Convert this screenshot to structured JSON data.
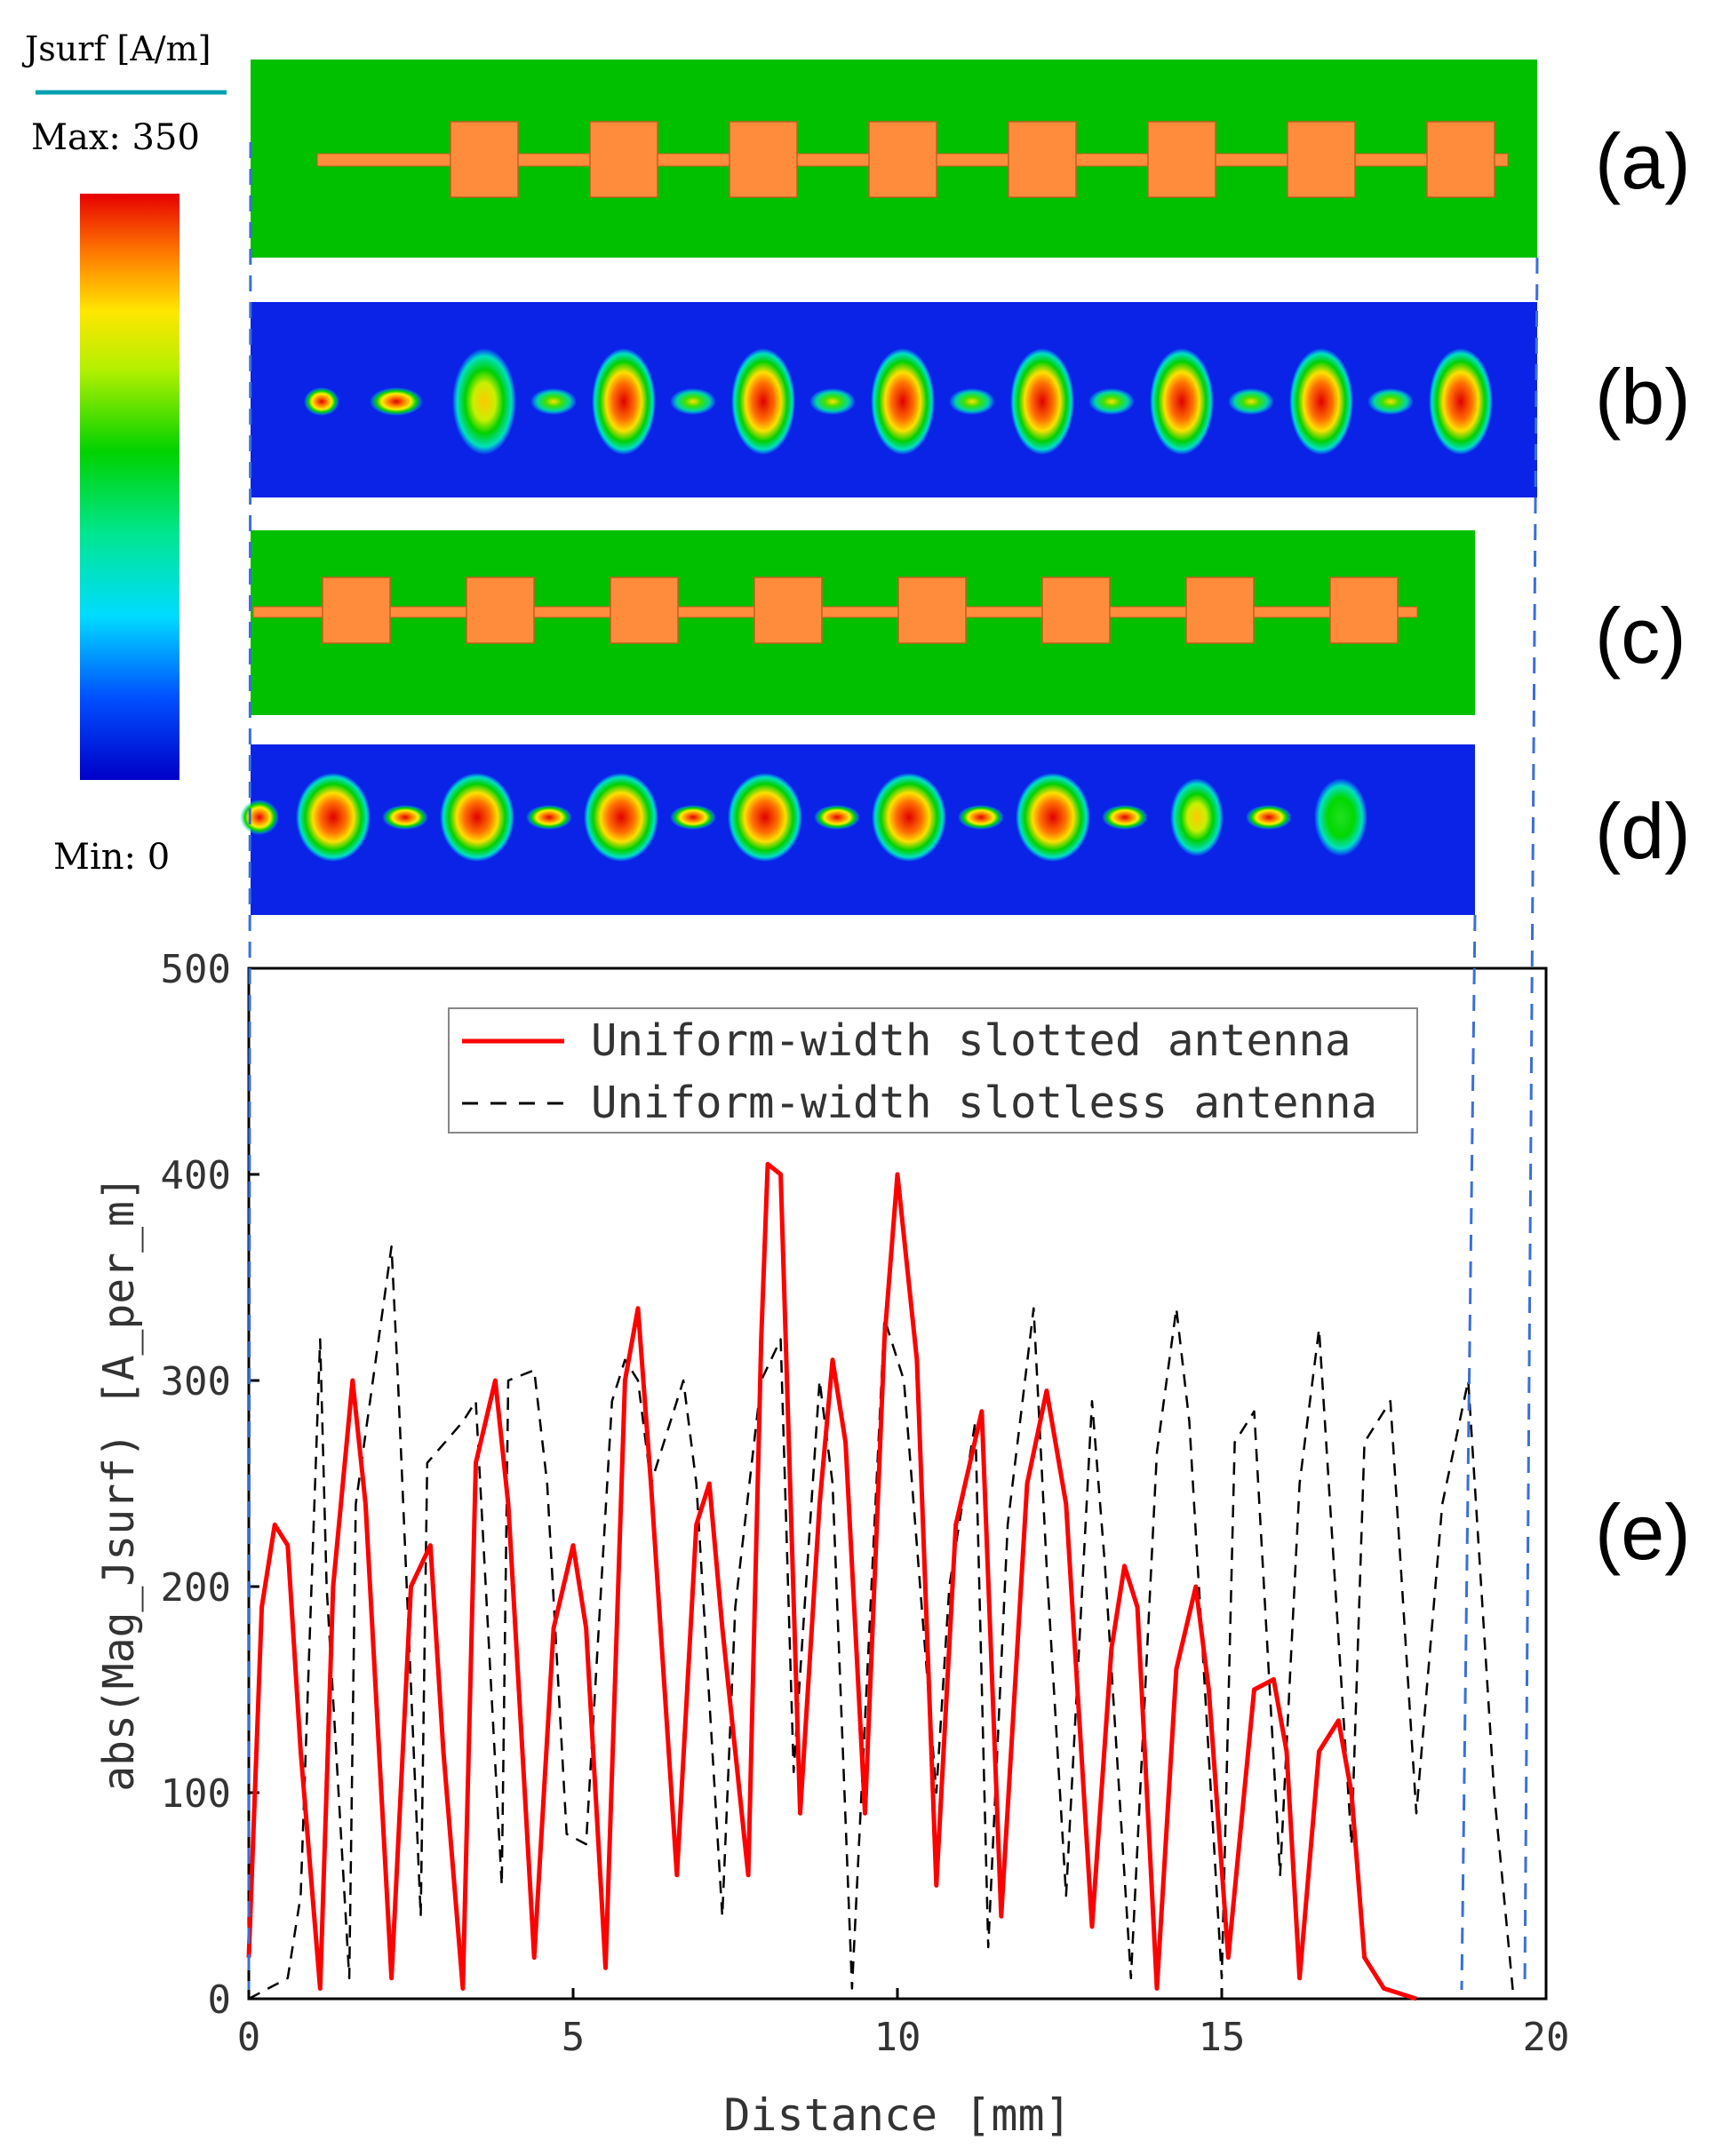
{
  "colorbar": {
    "title": "Jsurf [A/m]",
    "max_label": "Max:  350",
    "min_label": "Min:  0",
    "max": 350,
    "min": 0
  },
  "panels": {
    "a": {
      "label": "(a)",
      "pads": 8
    },
    "b": {
      "label": "(b)"
    },
    "c": {
      "label": "(c)",
      "pads": 8
    },
    "d": {
      "label": "(d)"
    },
    "e": {
      "label": "(e)"
    }
  },
  "colors": {
    "substrate": "#00C000",
    "copper": "#FF8C3C",
    "field_bg": "#0A23E6",
    "slotted": "#FF0000",
    "slotless": "#000000",
    "guide": "#3A6FD8"
  },
  "chart_data": {
    "type": "line",
    "xlabel": "Distance [mm]",
    "ylabel": "abs(Mag_Jsurf) [A_per_m]",
    "xlim": [
      0,
      20
    ],
    "ylim": [
      0,
      500
    ],
    "xticks": [
      0,
      5,
      10,
      15,
      20
    ],
    "yticks": [
      0,
      100,
      200,
      300,
      400,
      500
    ],
    "legend": "top-right",
    "series": [
      {
        "name": "Uniform-width slotted antenna",
        "style": "solid",
        "x": [
          0,
          0.2,
          0.4,
          0.6,
          0.8,
          1.1,
          1.3,
          1.6,
          1.8,
          2.2,
          2.5,
          2.8,
          3.0,
          3.3,
          3.5,
          3.8,
          4.0,
          4.4,
          4.7,
          5.0,
          5.2,
          5.5,
          5.8,
          6.0,
          6.2,
          6.6,
          6.9,
          7.1,
          7.3,
          7.7,
          7.9,
          8.0,
          8.2,
          8.5,
          8.8,
          9.0,
          9.2,
          9.5,
          9.8,
          10.0,
          10.3,
          10.6,
          10.9,
          11.3,
          11.6,
          12.0,
          12.3,
          12.6,
          13.0,
          13.3,
          13.5,
          13.7,
          14.0,
          14.3,
          14.6,
          14.8,
          15.1,
          15.5,
          15.8,
          16.0,
          16.2,
          16.5,
          16.8,
          17.0,
          17.2,
          17.5,
          18.0
        ],
        "y": [
          20,
          190,
          230,
          220,
          120,
          5,
          200,
          300,
          240,
          10,
          200,
          220,
          120,
          5,
          260,
          300,
          240,
          20,
          180,
          220,
          180,
          15,
          300,
          335,
          250,
          60,
          230,
          250,
          180,
          60,
          320,
          405,
          400,
          90,
          240,
          310,
          270,
          90,
          320,
          400,
          310,
          55,
          230,
          285,
          40,
          250,
          295,
          240,
          35,
          170,
          210,
          190,
          5,
          160,
          200,
          150,
          20,
          150,
          155,
          120,
          10,
          120,
          135,
          100,
          20,
          5,
          0
        ]
      },
      {
        "name": "Uniform-width slotless antenna",
        "style": "dashed",
        "x": [
          0,
          0.6,
          0.8,
          1.1,
          1.2,
          1.55,
          1.65,
          2.2,
          2.3,
          2.65,
          2.75,
          3.3,
          3.5,
          3.9,
          4.0,
          4.4,
          4.6,
          4.9,
          5.2,
          5.6,
          5.8,
          6.0,
          6.2,
          6.7,
          6.9,
          7.3,
          7.5,
          7.9,
          8.2,
          8.4,
          8.8,
          9.0,
          9.3,
          9.8,
          10.1,
          10.6,
          10.8,
          11.2,
          11.4,
          11.7,
          12.1,
          12.3,
          12.6,
          13.0,
          13.2,
          13.6,
          14.0,
          14.3,
          14.5,
          15.0,
          15.2,
          15.5,
          15.9,
          16.2,
          16.5,
          17.0,
          17.2,
          17.6,
          18.0,
          18.4,
          18.8,
          19.2,
          19.5
        ],
        "y": [
          0,
          10,
          50,
          320,
          200,
          10,
          240,
          365,
          300,
          40,
          260,
          280,
          290,
          55,
          300,
          305,
          250,
          80,
          75,
          290,
          310,
          300,
          250,
          300,
          250,
          40,
          190,
          300,
          320,
          110,
          300,
          250,
          5,
          330,
          300,
          100,
          200,
          280,
          25,
          230,
          335,
          210,
          50,
          290,
          210,
          10,
          265,
          335,
          280,
          10,
          270,
          285,
          60,
          250,
          325,
          75,
          270,
          290,
          90,
          240,
          300,
          100,
          0
        ]
      }
    ]
  }
}
